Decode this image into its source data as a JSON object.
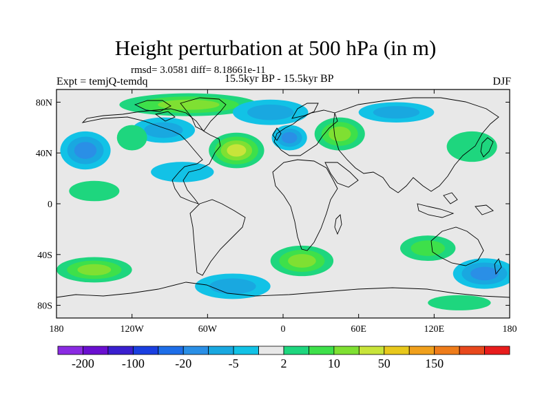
{
  "title": "Height perturbation at 500 hPa (in m)",
  "stats_line": "rmsd= 3.0581 diff= 8.18661e-11",
  "experiment": "Expt = temjQ-temdq",
  "period": "15.5kyr BP - 15.5kyr BP",
  "season": "DJF",
  "axes": {
    "lat_ticks": [
      {
        "label": "80N",
        "value": 80
      },
      {
        "label": "40N",
        "value": 40
      },
      {
        "label": "0",
        "value": 0
      },
      {
        "label": "40S",
        "value": -40
      },
      {
        "label": "80S",
        "value": -80
      }
    ],
    "lon_ticks": [
      {
        "label": "180",
        "value": -180
      },
      {
        "label": "120W",
        "value": -120
      },
      {
        "label": "60W",
        "value": -60
      },
      {
        "label": "0",
        "value": 0
      },
      {
        "label": "60E",
        "value": 60
      },
      {
        "label": "120E",
        "value": 120
      },
      {
        "label": "180",
        "value": 180
      }
    ],
    "lat_range": [
      -90,
      90
    ],
    "lon_range": [
      -180,
      180
    ]
  },
  "colorbar": {
    "colors": [
      "#8a2be2",
      "#6a0fd0",
      "#3a1fcf",
      "#1a3fe0",
      "#1e6ee8",
      "#2a8fe6",
      "#19a8e0",
      "#12c2e6",
      "#e8e8e8",
      "#1ed67e",
      "#3ee04a",
      "#7fe032",
      "#c8e43a",
      "#e8c81c",
      "#f0a01c",
      "#ee7c1a",
      "#e8481c",
      "#e81c1c"
    ],
    "labels": [
      {
        "text": "-200",
        "boundary": 1
      },
      {
        "text": "-100",
        "boundary": 3
      },
      {
        "text": "-20",
        "boundary": 5
      },
      {
        "text": "-5",
        "boundary": 7
      },
      {
        "text": "2",
        "boundary": 9
      },
      {
        "text": "10",
        "boundary": 11
      },
      {
        "text": "50",
        "boundary": 13
      },
      {
        "text": "150",
        "boundary": 15
      }
    ]
  },
  "field_anomalies": [
    {
      "name": "n-atlantic-high",
      "lon": -37,
      "lat": 42,
      "amp": 14,
      "rlon": 22,
      "rlat": 14
    },
    {
      "name": "n-pacific-low",
      "lon": -157,
      "lat": 42,
      "amp": -9,
      "rlon": 20,
      "rlat": 15
    },
    {
      "name": "greenland-high",
      "lon": -75,
      "lat": 78,
      "amp": 9,
      "rlon": 55,
      "rlat": 9
    },
    {
      "name": "arctic-low",
      "lon": -10,
      "lat": 72,
      "amp": -6,
      "rlon": 30,
      "rlat": 10
    },
    {
      "name": "europe-low",
      "lon": 5,
      "lat": 52,
      "amp": -9,
      "rlon": 14,
      "rlat": 10
    },
    {
      "name": "asia-high",
      "lon": 45,
      "lat": 55,
      "amp": 12,
      "rlon": 20,
      "rlat": 13
    },
    {
      "name": "n-america-low",
      "lon": -95,
      "lat": 58,
      "amp": -6,
      "rlon": 25,
      "rlat": 10
    },
    {
      "name": "central-asia-low",
      "lon": 90,
      "lat": 72,
      "amp": -6,
      "rlon": 30,
      "rlat": 8
    },
    {
      "name": "e-pacific-high",
      "lon": 150,
      "lat": 45,
      "amp": 5,
      "rlon": 20,
      "rlat": 12
    },
    {
      "name": "s-atlantic-high",
      "lon": 15,
      "lat": -45,
      "amp": 12,
      "rlon": 25,
      "rlat": 12
    },
    {
      "name": "s-pacific-high",
      "lon": -150,
      "lat": -52,
      "amp": 9,
      "rlon": 30,
      "rlat": 10
    },
    {
      "name": "australia-high",
      "lon": 115,
      "lat": -35,
      "amp": 6,
      "rlon": 22,
      "rlat": 10
    },
    {
      "name": "s-ocean-low",
      "lon": 160,
      "lat": -55,
      "amp": -9,
      "rlon": 25,
      "rlat": 12
    },
    {
      "name": "drake-low",
      "lon": -40,
      "lat": -65,
      "amp": -7,
      "rlon": 30,
      "rlat": 10
    },
    {
      "name": "antarctic-high",
      "lon": 140,
      "lat": -78,
      "amp": 4,
      "rlon": 25,
      "rlat": 6
    },
    {
      "name": "us-west-high",
      "lon": -120,
      "lat": 52,
      "amp": 4,
      "rlon": 12,
      "rlat": 10
    },
    {
      "name": "subtropic-low",
      "lon": -80,
      "lat": 25,
      "amp": -4,
      "rlon": 25,
      "rlat": 8
    },
    {
      "name": "pacific-high",
      "lon": -150,
      "lat": 10,
      "amp": 3,
      "rlon": 20,
      "rlat": 8
    }
  ]
}
